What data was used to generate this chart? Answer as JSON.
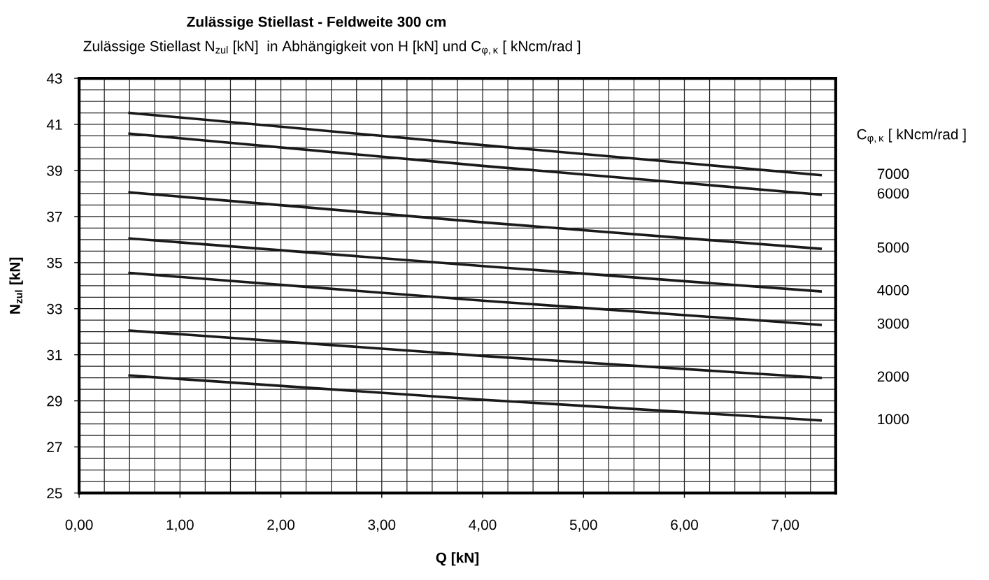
{
  "chart_data": {
    "type": "line",
    "title": "Zulässige Stiellast - Feldweite 300 cm",
    "subtitle": "Zulässige Stiellast N$_{zul}$ [kN]  in Abhängigkeit von H [kN] und C$_{φ,κ}$ [ kNcm/rad ]",
    "xlabel": "Q [kN]",
    "ylabel": "N$_{zul}$ [kN]",
    "legend_title": "C$_{φ,κ}$ [ kNcm/rad ]",
    "x": [
      0.5,
      4.0,
      7.35
    ],
    "series": [
      {
        "name": "7000",
        "color": "#1a1a1a",
        "values": [
          41.5,
          40.1,
          38.8
        ]
      },
      {
        "name": "6000",
        "color": "#1a1a1a",
        "values": [
          40.6,
          39.2,
          37.95
        ]
      },
      {
        "name": "5000",
        "color": "#1a1a1a",
        "values": [
          38.05,
          36.75,
          35.6
        ]
      },
      {
        "name": "4000",
        "color": "#1a1a1a",
        "values": [
          36.05,
          34.85,
          33.75
        ]
      },
      {
        "name": "3000",
        "color": "#1a1a1a",
        "values": [
          34.55,
          33.35,
          32.3
        ]
      },
      {
        "name": "2000",
        "color": "#1a1a1a",
        "values": [
          32.05,
          30.95,
          30.0
        ]
      },
      {
        "name": "1000",
        "color": "#1a1a1a",
        "values": [
          30.1,
          29.05,
          28.15
        ]
      }
    ],
    "xlim": [
      0,
      7.5
    ],
    "xticks": [
      {
        "value": 0,
        "label": "0,00"
      },
      {
        "value": 0.25,
        "label": null
      },
      {
        "value": 0.5,
        "label": null
      },
      {
        "value": 0.75,
        "label": null
      },
      {
        "value": 1,
        "label": "1,00"
      },
      {
        "value": 1.25,
        "label": null
      },
      {
        "value": 1.5,
        "label": null
      },
      {
        "value": 1.75,
        "label": null
      },
      {
        "value": 2,
        "label": "2,00"
      },
      {
        "value": 2.25,
        "label": null
      },
      {
        "value": 2.5,
        "label": null
      },
      {
        "value": 2.75,
        "label": null
      },
      {
        "value": 3,
        "label": "3,00"
      },
      {
        "value": 3.25,
        "label": null
      },
      {
        "value": 3.5,
        "label": null
      },
      {
        "value": 3.75,
        "label": null
      },
      {
        "value": 4,
        "label": "4,00"
      },
      {
        "value": 4.25,
        "label": null
      },
      {
        "value": 4.5,
        "label": null
      },
      {
        "value": 4.75,
        "label": null
      },
      {
        "value": 5,
        "label": "5,00"
      },
      {
        "value": 5.25,
        "label": null
      },
      {
        "value": 5.5,
        "label": null
      },
      {
        "value": 5.75,
        "label": null
      },
      {
        "value": 6,
        "label": "6,00"
      },
      {
        "value": 6.25,
        "label": null
      },
      {
        "value": 6.5,
        "label": null
      },
      {
        "value": 6.75,
        "label": null
      },
      {
        "value": 7,
        "label": "7,00"
      },
      {
        "value": 7.25,
        "label": null
      }
    ],
    "ylim": [
      25,
      43
    ],
    "yticks": [
      25,
      {
        "value": 25.5,
        "label": null
      },
      {
        "value": 26,
        "label": null
      },
      {
        "value": 26.5,
        "label": null
      },
      27,
      {
        "value": 27.5,
        "label": null
      },
      {
        "value": 28,
        "label": null
      },
      {
        "value": 28.5,
        "label": null
      },
      29,
      {
        "value": 29.5,
        "label": null
      },
      {
        "value": 30,
        "label": null
      },
      {
        "value": 30.5,
        "label": null
      },
      31,
      {
        "value": 31.5,
        "label": null
      },
      {
        "value": 32,
        "label": null
      },
      {
        "value": 32.5,
        "label": null
      },
      33,
      {
        "value": 33.5,
        "label": null
      },
      {
        "value": 34,
        "label": null
      },
      {
        "value": 34.5,
        "label": null
      },
      35,
      {
        "value": 35.5,
        "label": null
      },
      {
        "value": 36,
        "label": null
      },
      {
        "value": 36.5,
        "label": null
      },
      37,
      {
        "value": 37.5,
        "label": null
      },
      {
        "value": 38,
        "label": null
      },
      {
        "value": 38.5,
        "label": null
      },
      39,
      {
        "value": 39.5,
        "label": null
      },
      {
        "value": 40,
        "label": null
      },
      {
        "value": 40.5,
        "label": null
      },
      41,
      {
        "value": 41.5,
        "label": null
      },
      {
        "value": 42,
        "label": null
      },
      {
        "value": 42.5,
        "label": null
      },
      43
    ],
    "grid": true,
    "legend": false,
    "marker": "none",
    "line_style": "solid"
  }
}
